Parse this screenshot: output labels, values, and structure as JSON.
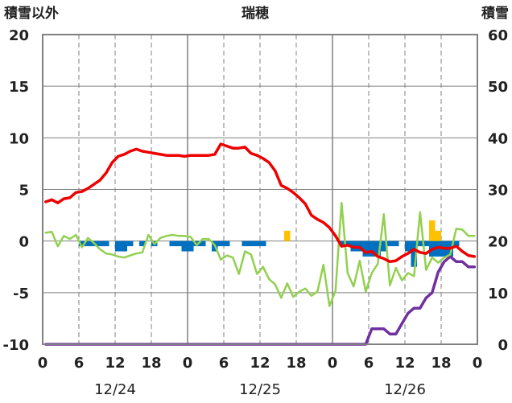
{
  "chart_data": {
    "type": "bar+line",
    "title": "瑞穂",
    "left_axis_label": "積雪以外",
    "right_axis_label": "積雪",
    "ylim_left": [
      -10,
      20
    ],
    "ylim_right": [
      0,
      60
    ],
    "y_ticks_left": [
      "20",
      "15",
      "10",
      "5",
      "0",
      "-5",
      "-10"
    ],
    "y_ticks_right": [
      "60",
      "50",
      "40",
      "30",
      "20",
      "10",
      "0"
    ],
    "x_tick_labels": [
      "0",
      "6",
      "12",
      "18",
      "0",
      "6",
      "12",
      "18",
      "0",
      "6",
      "12",
      "18",
      "0"
    ],
    "date_labels": [
      "12/24",
      "12/25",
      "12/26"
    ],
    "hours": 72,
    "series": [
      {
        "key": "red",
        "color": "#ee0000",
        "kind": "line",
        "axis": "left",
        "values": [
          3.8,
          4,
          3.7,
          4.1,
          4.2,
          4.7,
          4.8,
          5.1,
          5.5,
          5.9,
          6.6,
          7.6,
          8.2,
          8.4,
          8.7,
          8.9,
          8.7,
          8.6,
          8.5,
          8.4,
          8.3,
          8.3,
          8.3,
          8.2,
          8.3,
          8.3,
          8.3,
          8.3,
          8.4,
          9.4,
          9.2,
          9,
          9,
          9.1,
          8.5,
          8.3,
          8,
          7.6,
          6.8,
          5.4,
          5.1,
          4.7,
          4.2,
          3.6,
          2.5,
          2.1,
          1.8,
          1.3,
          0.5,
          -0.5,
          -0.4,
          -0.6,
          -0.6,
          -1.1,
          -1,
          -1.5,
          -1.7,
          -2,
          -1.9,
          -1.5,
          -1.2,
          -0.8,
          -1.1,
          -1.2,
          -0.8,
          -0.6,
          -0.7,
          -0.7,
          -0.5,
          -1,
          -1.4,
          -1.5
        ]
      },
      {
        "key": "green",
        "color": "#92d050",
        "kind": "line",
        "axis": "left",
        "values": [
          0.8,
          0.9,
          -0.5,
          0.5,
          0.2,
          0.6,
          -0.6,
          0.3,
          -0.2,
          -0.8,
          -1.2,
          -1.3,
          -1.5,
          -1.6,
          -1.4,
          -1.2,
          -1.1,
          0.6,
          -0.3,
          0.3,
          0.5,
          0.6,
          0.5,
          0.5,
          0.4,
          -0.4,
          0.2,
          0.2,
          -0.4,
          -1.8,
          -1.4,
          -1.6,
          -3.2,
          -1,
          -1.3,
          -3.2,
          -2.5,
          -3.7,
          -4.2,
          -5.5,
          -4.1,
          -5.4,
          -4.9,
          -4.6,
          -5.3,
          -4.9,
          -2.3,
          -6.3,
          -4.8,
          3.7,
          -3.1,
          -4.4,
          -1.9,
          -4.9,
          -3.1,
          -2.2,
          2.6,
          -4.3,
          -2.6,
          -3.8,
          -3.1,
          -3.4,
          2.8,
          -2.8,
          -1.6,
          -2.1,
          -1.6,
          -1.3,
          1.2,
          1.1,
          0.5,
          0.5
        ]
      },
      {
        "key": "purple",
        "color": "#7030a0",
        "kind": "line",
        "axis": "right",
        "values": [
          0,
          0,
          0,
          0,
          0,
          0,
          0,
          0,
          0,
          0,
          0,
          0,
          0,
          0,
          0,
          0,
          0,
          0,
          0,
          0,
          0,
          0,
          0,
          0,
          0,
          0,
          0,
          0,
          0,
          0,
          0,
          0,
          0,
          0,
          0,
          0,
          0,
          0,
          0,
          0,
          0,
          0,
          0,
          0,
          0,
          0,
          0,
          0,
          0,
          0,
          0,
          0,
          0,
          0,
          3,
          3,
          3,
          2,
          2,
          4,
          6,
          7,
          7,
          9,
          10,
          14,
          16,
          17,
          16,
          16,
          15,
          15
        ]
      },
      {
        "key": "blue",
        "color": "#0070c0",
        "kind": "bar",
        "axis": "left",
        "values": [
          0,
          0,
          0,
          0,
          0,
          0,
          -0.5,
          -0.5,
          -0.5,
          -0.5,
          -0.5,
          0,
          -1,
          -1,
          -0.5,
          0,
          -0.5,
          0,
          -0.5,
          0,
          0,
          -0.5,
          -0.5,
          -1,
          -1,
          -0.5,
          -0.5,
          0,
          -1,
          -0.5,
          -0.5,
          0,
          0,
          -0.5,
          -0.5,
          -0.5,
          -0.5,
          0,
          0,
          0,
          0,
          0,
          0,
          0,
          0,
          0,
          0,
          0,
          0,
          -0.5,
          -0.5,
          -1,
          -1,
          -1.5,
          -1.5,
          -1.5,
          -1,
          -0.5,
          -0.5,
          0,
          -1,
          -2.5,
          -0.5,
          -0.5,
          -1.5,
          -1.5,
          -1.5,
          -1.5,
          -0.5,
          0,
          0,
          0
        ]
      },
      {
        "key": "orange",
        "color": "#ffc000",
        "kind": "bar",
        "axis": "left",
        "values": [
          0,
          0,
          0,
          0,
          0,
          0,
          0,
          0,
          0,
          0,
          0,
          0,
          0,
          0,
          0,
          0,
          0,
          0,
          0,
          0,
          0,
          0,
          0,
          0,
          0,
          0,
          0,
          0,
          0,
          0,
          0,
          0,
          0,
          0,
          0,
          0,
          0,
          0,
          0,
          0,
          1,
          0,
          0,
          0,
          0,
          0,
          0,
          0,
          0,
          0,
          0,
          0,
          0,
          0,
          0,
          0,
          0,
          0,
          0,
          0,
          0,
          0,
          0,
          0,
          2,
          1,
          0,
          0,
          0,
          0,
          0,
          0
        ]
      }
    ],
    "grid": "dashed vertical at 6-hour ticks, solid at day boundaries, horizontal at y ticks",
    "colors": {
      "axis": "#808080",
      "grid": "#808080",
      "text": "#222222"
    }
  }
}
